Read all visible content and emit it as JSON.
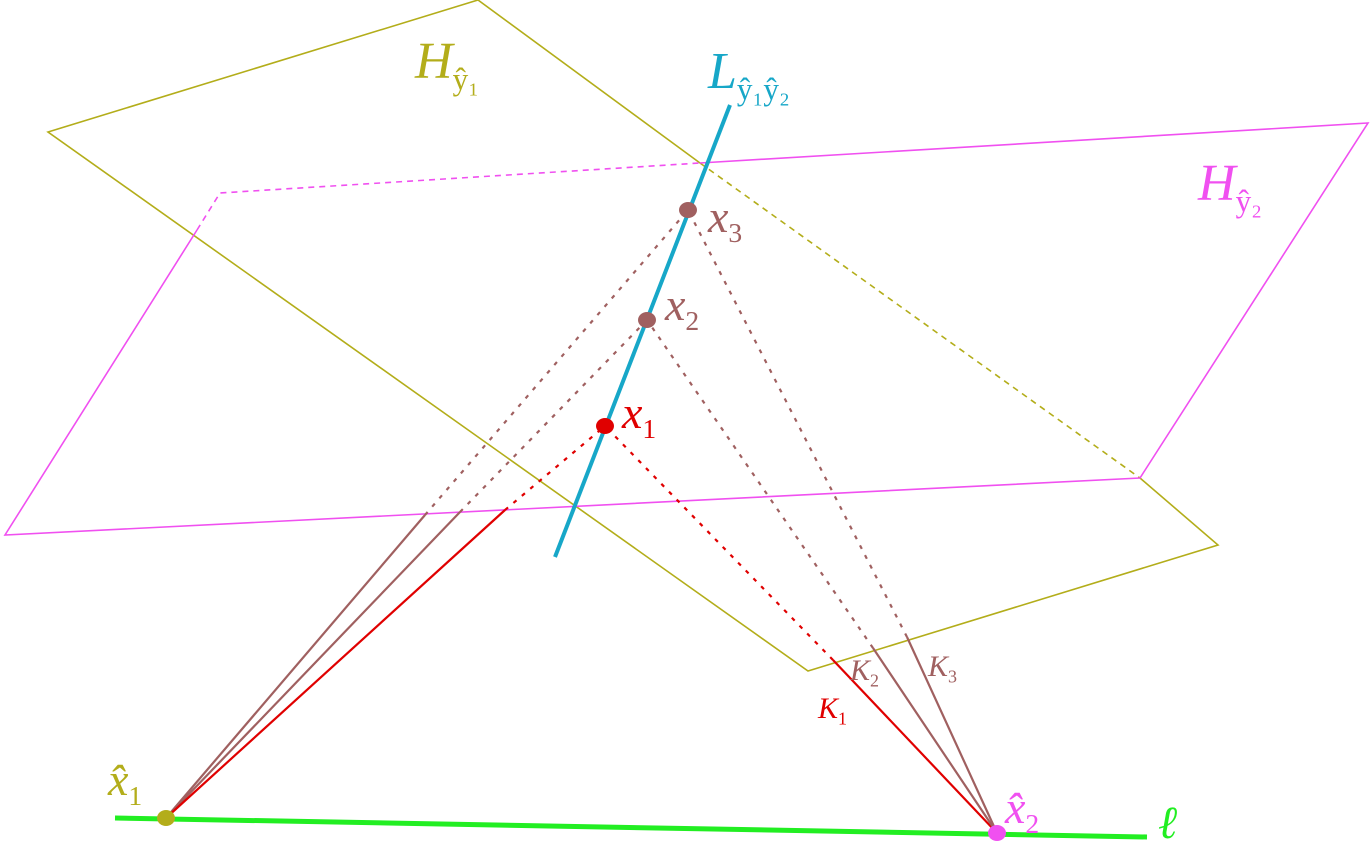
{
  "labels": {
    "plane1": {
      "main": "H",
      "sub": "ŷ₁"
    },
    "line": {
      "main": "L",
      "sub": "ŷ₁ŷ₂"
    },
    "plane2": {
      "main": "H",
      "sub": "ŷ₂"
    },
    "x3": {
      "main": "x",
      "sub": "3"
    },
    "x2": {
      "main": "x",
      "sub": "2"
    },
    "x1": {
      "main": "x",
      "sub": "1"
    },
    "k1": {
      "main": "K",
      "sub": "1"
    },
    "k2": {
      "main": "K",
      "sub": "2"
    },
    "k3": {
      "main": "K",
      "sub": "3"
    },
    "xhat1": {
      "main": "x̂",
      "sub": "1"
    },
    "xhat2": {
      "main": "x̂",
      "sub": "2"
    },
    "ell": {
      "main": "ℓ"
    }
  }
}
